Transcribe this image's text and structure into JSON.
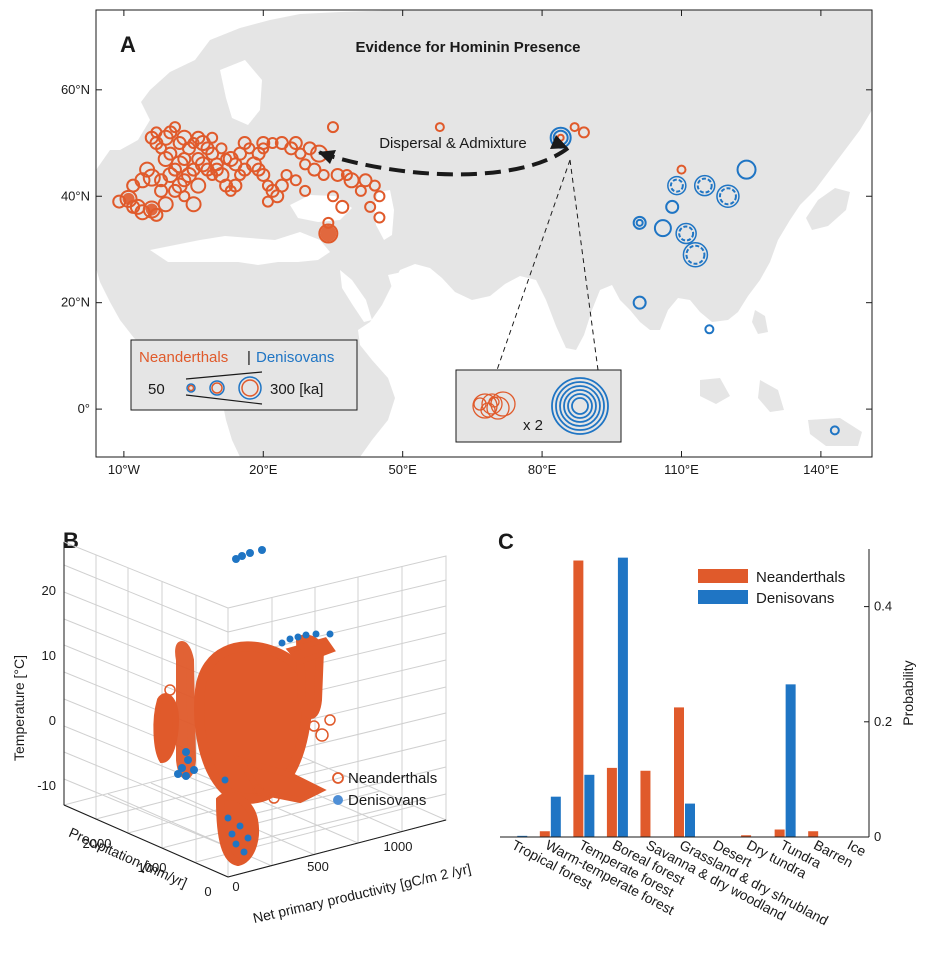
{
  "colors": {
    "neanderthal": "#e05a2b",
    "denisovan": "#1f75c4",
    "land": "#e5e5e5",
    "sea": "#ffffff"
  },
  "chart_data": [
    {
      "panel": "A",
      "type": "scatter",
      "title": "Evidence for Hominin Presence",
      "x_ticks": [
        "10°W",
        "20°E",
        "50°E",
        "80°E",
        "110°E",
        "140°E"
      ],
      "y_ticks": [
        "0°",
        "20°N",
        "40°N",
        "60°N"
      ],
      "xlim": [
        -16,
        151
      ],
      "ylim": [
        -9,
        75
      ],
      "annotation": "Dispersal & Admixture",
      "legend": {
        "neanderthal_label": "Neanderthals",
        "separator": "|",
        "denisovan_label": "Denisovans",
        "min_label": "50",
        "max_label": "300 [ka]"
      },
      "inset_label": "x 2",
      "neanderthal_points": [
        [
          -11,
          39,
          6
        ],
        [
          -9,
          39.5,
          8
        ],
        [
          -8,
          38,
          6
        ],
        [
          -6,
          37,
          7
        ],
        [
          -4,
          37.5,
          8
        ],
        [
          -3,
          36.5,
          6
        ],
        [
          -1,
          38.5,
          7
        ],
        [
          1,
          41,
          6
        ],
        [
          2,
          42,
          7
        ],
        [
          3,
          43,
          6
        ],
        [
          -8,
          42,
          6
        ],
        [
          -6,
          43,
          7
        ],
        [
          -4,
          43.5,
          8
        ],
        [
          -2,
          43,
          6
        ],
        [
          0,
          44,
          7
        ],
        [
          1,
          45,
          6
        ],
        [
          2,
          46,
          8
        ],
        [
          3,
          47,
          6
        ],
        [
          4,
          44,
          7
        ],
        [
          5,
          45,
          6
        ],
        [
          -1,
          47,
          7
        ],
        [
          0,
          48,
          6
        ],
        [
          -2,
          49,
          5
        ],
        [
          -3,
          50,
          6
        ],
        [
          -1,
          51,
          7
        ],
        [
          0,
          52,
          6
        ],
        [
          1,
          53,
          5
        ],
        [
          -4,
          51,
          6
        ],
        [
          -3,
          52,
          5
        ],
        [
          2,
          50,
          6
        ],
        [
          3,
          51,
          7
        ],
        [
          4,
          49,
          6
        ],
        [
          5,
          50,
          5
        ],
        [
          6,
          51,
          6
        ],
        [
          7,
          50,
          7
        ],
        [
          8,
          49,
          6
        ],
        [
          9,
          51,
          5
        ],
        [
          6,
          47,
          6
        ],
        [
          7,
          46,
          7
        ],
        [
          8,
          45,
          6
        ],
        [
          9,
          44,
          5
        ],
        [
          10,
          46,
          6
        ],
        [
          11,
          44,
          7
        ],
        [
          12,
          42,
          6
        ],
        [
          13,
          41,
          5
        ],
        [
          14,
          42,
          6
        ],
        [
          15,
          44,
          5
        ],
        [
          16,
          45,
          6
        ],
        [
          14,
          46,
          6
        ],
        [
          13,
          47,
          7
        ],
        [
          15,
          48,
          6
        ],
        [
          16,
          50,
          6
        ],
        [
          17,
          49,
          5
        ],
        [
          19,
          48,
          6
        ],
        [
          20,
          49,
          5
        ],
        [
          18,
          46,
          7
        ],
        [
          19,
          45,
          6
        ],
        [
          20,
          44,
          6
        ],
        [
          21,
          42,
          5
        ],
        [
          22,
          41,
          6
        ],
        [
          23,
          40,
          6
        ],
        [
          21,
          39,
          5
        ],
        [
          24,
          42,
          6
        ],
        [
          25,
          44,
          5
        ],
        [
          20,
          50,
          6
        ],
        [
          22,
          50,
          5
        ],
        [
          24,
          50,
          6
        ],
        [
          26,
          49,
          6
        ],
        [
          28,
          48,
          5
        ],
        [
          27,
          50,
          6
        ],
        [
          30,
          49,
          6
        ],
        [
          32,
          48,
          8
        ],
        [
          29,
          46,
          5
        ],
        [
          31,
          45,
          6
        ],
        [
          33,
          44,
          5
        ],
        [
          36,
          44,
          6
        ],
        [
          38,
          44,
          5
        ],
        [
          42,
          43,
          6
        ],
        [
          44,
          42,
          5
        ],
        [
          45,
          40,
          5
        ],
        [
          39,
          43,
          7
        ],
        [
          41,
          41,
          5
        ],
        [
          35,
          40,
          5
        ],
        [
          37,
          38,
          6
        ],
        [
          34,
          33,
          9
        ],
        [
          34,
          35,
          5
        ],
        [
          43,
          38,
          5
        ],
        [
          45,
          36,
          5
        ],
        [
          58,
          53,
          4
        ],
        [
          35,
          53,
          5
        ],
        [
          87,
          53,
          4
        ],
        [
          89,
          52,
          5
        ],
        [
          110,
          45,
          4
        ],
        [
          84,
          51,
          3
        ],
        [
          5,
          38.5,
          7
        ],
        [
          -7,
          38,
          7
        ],
        [
          10,
          45,
          6
        ],
        [
          12,
          47,
          5
        ],
        [
          -5,
          45,
          7
        ],
        [
          -2,
          41,
          6
        ],
        [
          3,
          40,
          5
        ],
        [
          6,
          42,
          7
        ],
        [
          27,
          43,
          5
        ],
        [
          29,
          41,
          5
        ],
        [
          9,
          48,
          6
        ],
        [
          11,
          49,
          5
        ]
      ],
      "denisovan_points": [
        [
          84,
          51,
          10
        ],
        [
          101,
          35,
          6
        ],
        [
          106,
          34,
          8
        ],
        [
          111,
          33,
          7
        ],
        [
          113,
          29,
          9
        ],
        [
          115,
          42,
          7
        ],
        [
          120,
          40,
          8
        ],
        [
          124,
          45,
          9
        ],
        [
          109,
          42,
          6
        ],
        [
          108,
          38,
          6
        ],
        [
          101,
          20,
          6
        ],
        [
          116,
          15,
          4
        ],
        [
          143,
          -4,
          4
        ]
      ]
    },
    {
      "panel": "B",
      "type": "scatter",
      "xlabel": "Precipitation [mm/yr]",
      "ylabel": "Temperature [°C]",
      "zlabel": "Net primary productivity [gC/m 2 /yr]",
      "y_ticks": [
        "-10",
        "0",
        "10",
        "20"
      ],
      "x_ticks": [
        "0",
        "1000",
        "2000"
      ],
      "z_ticks": [
        "0",
        "500",
        "1000"
      ],
      "legend": [
        "Neanderthals",
        "Denisovans"
      ]
    },
    {
      "panel": "C",
      "type": "bar",
      "ylabel": "Probability",
      "ylim": [
        0,
        0.5
      ],
      "y_ticks": [
        "0",
        "0.2",
        "0.4"
      ],
      "categories": [
        "Tropical forest",
        "Warm-temperate forest",
        "Temperate forest",
        "Boreal forest",
        "Savanna & dry woodland",
        "Grassland & dry shrubland",
        "Desert",
        "Dry tundra",
        "Tundra",
        "Barren",
        "Ice"
      ],
      "series": [
        {
          "name": "Neanderthals",
          "values": [
            0.0,
            0.01,
            0.48,
            0.12,
            0.115,
            0.225,
            0.0,
            0.003,
            0.013,
            0.01,
            0.0
          ]
        },
        {
          "name": "Denisovans",
          "values": [
            0.002,
            0.07,
            0.108,
            0.485,
            0.0,
            0.058,
            0.0,
            0.0,
            0.265,
            0.0,
            0.0
          ]
        }
      ]
    }
  ]
}
